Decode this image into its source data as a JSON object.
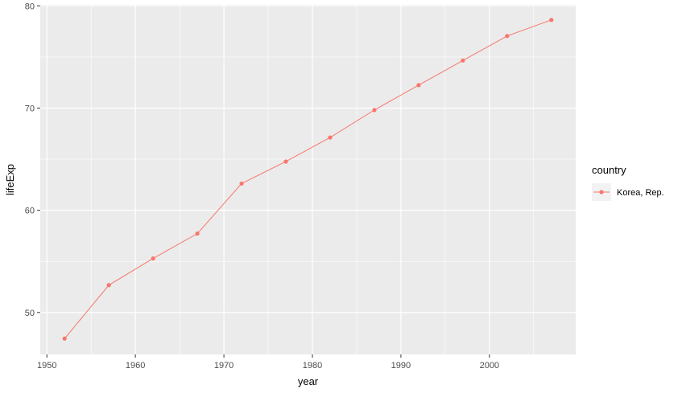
{
  "chart_data": {
    "type": "line",
    "title": "",
    "xlabel": "year",
    "ylabel": "lifeExp",
    "xlim": [
      1949.25,
      2009.75
    ],
    "ylim": [
      45.9,
      80.1
    ],
    "x_ticks": [
      1950,
      1960,
      1970,
      1980,
      1990,
      2000
    ],
    "y_ticks": [
      50,
      60,
      70,
      80
    ],
    "grid": true,
    "legend": {
      "title": "country",
      "position": "right"
    },
    "series": [
      {
        "name": "Korea, Rep.",
        "color": "#F8766D",
        "x": [
          1952,
          1957,
          1962,
          1967,
          1972,
          1977,
          1982,
          1987,
          1992,
          1997,
          2002,
          2007
        ],
        "y": [
          47.45,
          52.68,
          55.29,
          57.72,
          62.61,
          64.77,
          67.12,
          69.81,
          72.24,
          74.65,
          77.05,
          78.62
        ]
      }
    ]
  }
}
